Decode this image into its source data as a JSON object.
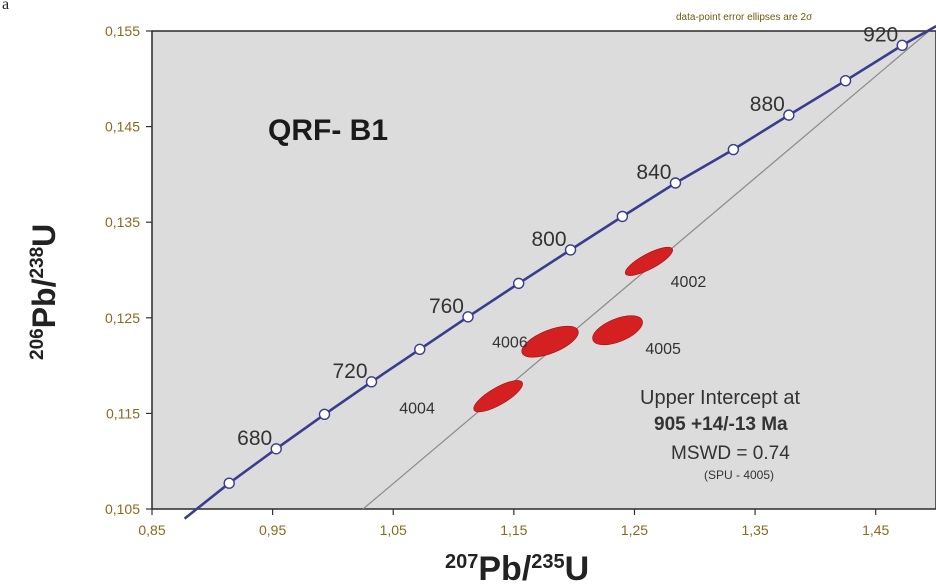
{
  "panel_label": "a",
  "chart_data": {
    "type": "scatter",
    "title": "QRF- B1",
    "top_note": "data-point error ellipses are 2σ",
    "xlabel": {
      "base": "Pb/",
      "sup1": "207",
      "sup2": "235",
      "tail": "U"
    },
    "ylabel": {
      "base": "Pb/",
      "sup1": "206",
      "sup2": "238",
      "tail": "U"
    },
    "xlim": [
      0.85,
      1.5
    ],
    "ylim": [
      0.105,
      0.155
    ],
    "x_ticks": [
      0.85,
      0.95,
      1.05,
      1.15,
      1.25,
      1.35,
      1.45
    ],
    "x_tick_labels": [
      "0,85",
      "0,95",
      "1,05",
      "1,15",
      "1,25",
      "1,35",
      "1,45"
    ],
    "y_ticks": [
      0.105,
      0.115,
      0.125,
      0.135,
      0.145,
      0.155
    ],
    "y_tick_labels": [
      "0,105",
      "0,115",
      "0,125",
      "0,135",
      "0,145",
      "0,155"
    ],
    "concordia": {
      "color": "#3a3d8f",
      "points": [
        {
          "x": 0.877,
          "y": 0.104
        },
        {
          "x": 0.914,
          "y": 0.1077
        },
        {
          "x": 0.953,
          "y": 0.1113
        },
        {
          "x": 0.993,
          "y": 0.1149
        },
        {
          "x": 1.032,
          "y": 0.1183
        },
        {
          "x": 1.072,
          "y": 0.1217
        },
        {
          "x": 1.112,
          "y": 0.1251
        },
        {
          "x": 1.154,
          "y": 0.1286
        },
        {
          "x": 1.197,
          "y": 0.1321
        },
        {
          "x": 1.24,
          "y": 0.1356
        },
        {
          "x": 1.284,
          "y": 0.1391
        },
        {
          "x": 1.332,
          "y": 0.1426
        },
        {
          "x": 1.378,
          "y": 0.1462
        },
        {
          "x": 1.425,
          "y": 0.1498
        },
        {
          "x": 1.472,
          "y": 0.1535
        },
        {
          "x": 1.5,
          "y": 0.1555
        }
      ],
      "markers": [
        {
          "x": 0.914,
          "y": 0.1077
        },
        {
          "x": 0.953,
          "y": 0.1113
        },
        {
          "x": 0.993,
          "y": 0.1149
        },
        {
          "x": 1.032,
          "y": 0.1183
        },
        {
          "x": 1.072,
          "y": 0.1217
        },
        {
          "x": 1.112,
          "y": 0.1251
        },
        {
          "x": 1.154,
          "y": 0.1286
        },
        {
          "x": 1.197,
          "y": 0.1321
        },
        {
          "x": 1.24,
          "y": 0.1356
        },
        {
          "x": 1.284,
          "y": 0.1391
        },
        {
          "x": 1.332,
          "y": 0.1426
        },
        {
          "x": 1.378,
          "y": 0.1462
        },
        {
          "x": 1.425,
          "y": 0.1498
        },
        {
          "x": 1.472,
          "y": 0.1535
        }
      ],
      "age_labels": [
        {
          "text": "680",
          "x": 0.953,
          "y": 0.1113
        },
        {
          "text": "720",
          "x": 1.032,
          "y": 0.1183
        },
        {
          "text": "760",
          "x": 1.112,
          "y": 0.1251
        },
        {
          "text": "800",
          "x": 1.197,
          "y": 0.1321
        },
        {
          "text": "840",
          "x": 1.284,
          "y": 0.1391
        },
        {
          "text": "880",
          "x": 1.378,
          "y": 0.1462
        },
        {
          "text": "920",
          "x": 1.472,
          "y": 0.1535
        }
      ]
    },
    "discordia": {
      "color": "#8a8a8a",
      "x": [
        1.025,
        1.5
      ],
      "y": [
        0.105,
        0.1556
      ]
    },
    "ellipses": [
      {
        "name": "4002",
        "x": 1.262,
        "y": 0.1309,
        "rx": 0.022,
        "ry": 0.0008,
        "angle_deg": -28
      },
      {
        "name": "4006",
        "x": 1.18,
        "y": 0.1225,
        "rx": 0.025,
        "ry": 0.0012,
        "angle_deg": -22
      },
      {
        "name": "4005",
        "x": 1.236,
        "y": 0.1237,
        "rx": 0.022,
        "ry": 0.0012,
        "angle_deg": -22
      },
      {
        "name": "4004",
        "x": 1.137,
        "y": 0.1168,
        "rx": 0.023,
        "ry": 0.0009,
        "angle_deg": -30
      }
    ],
    "ellipse_color": "#d42020",
    "ellipse_labels": [
      {
        "text": "4002",
        "x": 1.28,
        "y": 0.1282
      },
      {
        "text": "4006",
        "x": 1.132,
        "y": 0.1219
      },
      {
        "text": "4005",
        "x": 1.259,
        "y": 0.1212
      },
      {
        "text": "4004",
        "x": 1.055,
        "y": 0.115
      }
    ],
    "annotation": {
      "line1": "Upper  Intercept at",
      "line2": "905  +14/-13  Ma",
      "line3": "MSWD = 0.74",
      "line4": "(SPU - 4005)"
    },
    "plot_bg": "#dcdcdc",
    "tick_label_color": "#8b6a1e"
  }
}
